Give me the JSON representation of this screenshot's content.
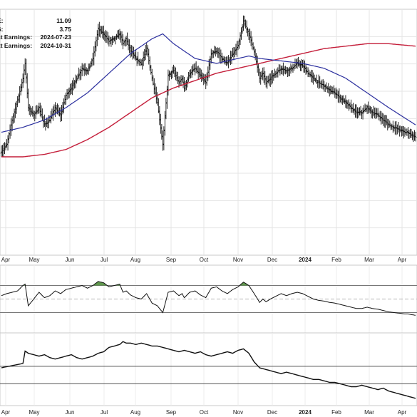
{
  "info_panel": [
    {
      "label": "E:",
      "value": "11.09"
    },
    {
      "label": "S:",
      "value": "3.75"
    },
    {
      "label": "st Earnings:",
      "value": "2024-07-23"
    },
    {
      "label": "xt Earnings:",
      "value": "2024-10-31"
    }
  ],
  "chart_data": [
    {
      "type": "line",
      "panel": "price",
      "style": "ohlc-bars",
      "x_tick_labels": [
        "Apr",
        "May",
        "Jun",
        "Jul",
        "Aug",
        "Sep",
        "Oct",
        "Nov",
        "Dec",
        "2024",
        "Feb",
        "Mar",
        "Apr"
      ],
      "grid": true,
      "colors": {
        "bars": "#111111",
        "ma_short": "#2b2f9e",
        "ma_long": "#c41e3a",
        "grid": "#e4e4e4"
      },
      "series": [
        {
          "role": "price-close-approx",
          "x": [
            0,
            5,
            10,
            15,
            20,
            22,
            25,
            30,
            35,
            40,
            45,
            50,
            55,
            60,
            65,
            70,
            75,
            80,
            85,
            90,
            95,
            100,
            105,
            110,
            113,
            116,
            120,
            125,
            130,
            135,
            140,
            145,
            150,
            155,
            160,
            165,
            168,
            170,
            175,
            180,
            185,
            190,
            195,
            200,
            205,
            210,
            215,
            220,
            225,
            230,
            235,
            240,
            243,
            246,
            250,
            255,
            260,
            265,
            270,
            275,
            280,
            285,
            290,
            295,
            300,
            305,
            310,
            315,
            320,
            325,
            330,
            335,
            340,
            345,
            350,
            355,
            360,
            365,
            370,
            375,
            378,
            381,
            385
          ],
          "values": [
            0.42,
            0.45,
            0.55,
            0.63,
            0.72,
            0.78,
            0.6,
            0.57,
            0.6,
            0.53,
            0.55,
            0.6,
            0.57,
            0.65,
            0.68,
            0.72,
            0.76,
            0.75,
            0.8,
            0.92,
            0.9,
            0.87,
            0.88,
            0.9,
            0.86,
            0.88,
            0.83,
            0.8,
            0.78,
            0.84,
            0.72,
            0.62,
            0.45,
            0.73,
            0.75,
            0.7,
            0.72,
            0.68,
            0.74,
            0.76,
            0.73,
            0.7,
            0.82,
            0.83,
            0.8,
            0.78,
            0.82,
            0.85,
            0.95,
            0.9,
            0.83,
            0.72,
            0.74,
            0.7,
            0.72,
            0.74,
            0.76,
            0.75,
            0.76,
            0.78,
            0.77,
            0.74,
            0.72,
            0.7,
            0.69,
            0.67,
            0.66,
            0.64,
            0.62,
            0.6,
            0.58,
            0.58,
            0.6,
            0.58,
            0.57,
            0.55,
            0.53,
            0.52,
            0.51,
            0.5,
            0.5,
            0.49,
            0.48
          ]
        },
        {
          "role": "moving-average-short",
          "x": [
            0,
            20,
            40,
            60,
            80,
            100,
            120,
            140,
            150,
            160,
            180,
            200,
            220,
            230,
            240,
            260,
            280,
            300,
            320,
            340,
            360,
            385
          ],
          "values": [
            0.5,
            0.52,
            0.55,
            0.6,
            0.66,
            0.74,
            0.82,
            0.88,
            0.9,
            0.86,
            0.8,
            0.78,
            0.8,
            0.81,
            0.8,
            0.79,
            0.78,
            0.76,
            0.72,
            0.66,
            0.6,
            0.53
          ]
        },
        {
          "role": "moving-average-long",
          "x": [
            0,
            20,
            40,
            60,
            80,
            100,
            120,
            140,
            160,
            180,
            200,
            220,
            240,
            260,
            280,
            300,
            320,
            340,
            360,
            385
          ],
          "values": [
            0.4,
            0.4,
            0.41,
            0.43,
            0.47,
            0.52,
            0.58,
            0.64,
            0.68,
            0.71,
            0.74,
            0.76,
            0.78,
            0.8,
            0.82,
            0.84,
            0.85,
            0.86,
            0.86,
            0.85
          ]
        }
      ]
    },
    {
      "type": "line",
      "panel": "oscillator",
      "overbought": 70,
      "oversold": 30,
      "midline": 50,
      "ylim": [
        0,
        100
      ],
      "colors": {
        "line": "#111111",
        "fill_overbought": "#4e8c3a",
        "bands": "#777777"
      },
      "series": [
        {
          "x": [
            0,
            5,
            10,
            15,
            20,
            22,
            25,
            30,
            35,
            40,
            45,
            50,
            55,
            60,
            65,
            70,
            75,
            80,
            85,
            90,
            95,
            100,
            105,
            110,
            113,
            116,
            120,
            125,
            130,
            135,
            140,
            145,
            150,
            155,
            160,
            165,
            168,
            170,
            175,
            180,
            185,
            190,
            195,
            200,
            205,
            210,
            215,
            220,
            225,
            230,
            235,
            240,
            243,
            246,
            250,
            255,
            260,
            265,
            270,
            275,
            280,
            285,
            290,
            295,
            300,
            305,
            310,
            315,
            320,
            325,
            330,
            335,
            340,
            345,
            350,
            355,
            360,
            365,
            370,
            375,
            378,
            381,
            385
          ],
          "values": [
            55,
            58,
            60,
            62,
            70,
            72,
            40,
            50,
            60,
            52,
            55,
            62,
            58,
            64,
            66,
            68,
            70,
            66,
            70,
            76,
            74,
            68,
            70,
            72,
            60,
            62,
            56,
            52,
            50,
            58,
            44,
            40,
            30,
            60,
            62,
            55,
            58,
            52,
            60,
            62,
            56,
            52,
            66,
            68,
            62,
            58,
            64,
            68,
            75,
            70,
            58,
            45,
            50,
            46,
            50,
            54,
            58,
            55,
            58,
            60,
            58,
            54,
            50,
            48,
            47,
            45,
            44,
            42,
            40,
            38,
            36,
            36,
            38,
            36,
            35,
            33,
            31,
            30,
            29,
            28,
            28,
            27,
            26
          ]
        }
      ]
    },
    {
      "type": "line",
      "panel": "relative-strength",
      "colors": {
        "line": "#111111",
        "reference": "#555555"
      },
      "series": [
        {
          "x": [
            0,
            10,
            20,
            22,
            25,
            30,
            35,
            40,
            45,
            50,
            55,
            60,
            65,
            70,
            75,
            80,
            85,
            90,
            95,
            100,
            105,
            110,
            113,
            116,
            120,
            125,
            130,
            135,
            140,
            145,
            150,
            155,
            160,
            165,
            170,
            175,
            180,
            185,
            190,
            195,
            200,
            205,
            210,
            215,
            220,
            225,
            230,
            235,
            240,
            245,
            250,
            255,
            260,
            265,
            270,
            275,
            280,
            285,
            290,
            295,
            300,
            305,
            310,
            315,
            320,
            325,
            330,
            335,
            340,
            345,
            350,
            355,
            360,
            365,
            370,
            375,
            380,
            385
          ],
          "values": [
            52,
            55,
            58,
            75,
            72,
            70,
            68,
            70,
            66,
            64,
            66,
            68,
            70,
            66,
            64,
            66,
            68,
            72,
            74,
            80,
            82,
            84,
            88,
            86,
            86,
            84,
            86,
            84,
            82,
            82,
            80,
            78,
            76,
            74,
            76,
            74,
            72,
            74,
            70,
            68,
            70,
            72,
            74,
            72,
            76,
            78,
            72,
            60,
            52,
            50,
            48,
            46,
            44,
            46,
            44,
            42,
            40,
            38,
            36,
            36,
            34,
            32,
            32,
            30,
            28,
            26,
            26,
            28,
            26,
            24,
            22,
            24,
            20,
            18,
            16,
            14,
            12,
            10
          ]
        }
      ]
    }
  ]
}
